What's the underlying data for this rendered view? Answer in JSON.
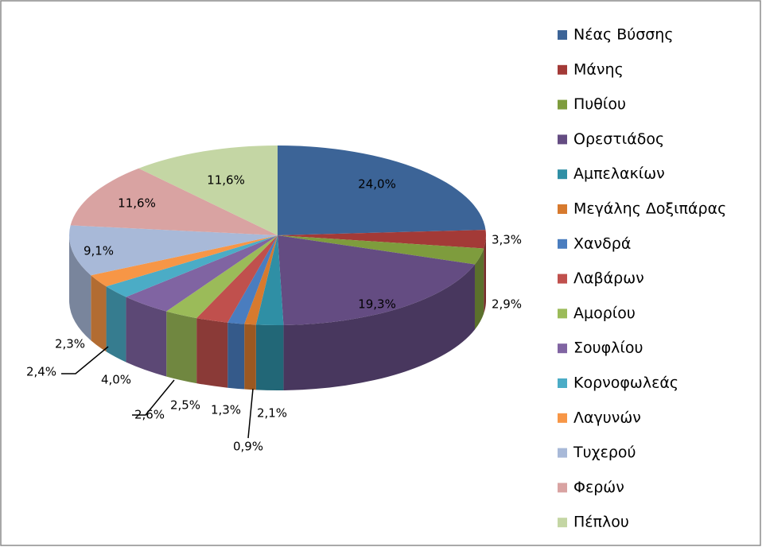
{
  "chart_data": {
    "type": "pie",
    "categories": [
      "Νέας Βύσσης",
      "Μάνης",
      "Πυθίου",
      "Ορεστιάδος",
      "Αμπελακίων",
      "Μεγάλης Δοξιπάρας",
      "Χανδρά",
      "Λαβάρων",
      "Αμορίου",
      "Σουφλίου",
      "Κορνοφωλεάς",
      "Λαγυνών",
      "Τυχερού",
      "Φερών",
      "Πέπλου"
    ],
    "values": [
      24.0,
      3.3,
      2.9,
      19.3,
      2.1,
      0.9,
      1.3,
      2.5,
      2.6,
      4.0,
      2.4,
      2.3,
      9.1,
      11.6,
      11.6
    ],
    "value_labels": [
      "24,0%",
      "3,3%",
      "2,9%",
      "19,3%",
      "2,1%",
      "0,9%",
      "1,3%",
      "2,5%",
      "2,6%",
      "4,0%",
      "2,4%",
      "2,3%",
      "9,1%",
      "11,6%",
      "11,6%"
    ],
    "colors": [
      "#3c6497",
      "#a33a37",
      "#7e9c3d",
      "#644c82",
      "#2f8fa5",
      "#d77a2e",
      "#4a7dbf",
      "#c0504d",
      "#9bbb59",
      "#8064a2",
      "#4bacc6",
      "#f79646",
      "#a8b9d8",
      "#d9a3a2",
      "#c4d6a4"
    ],
    "legend": "right"
  }
}
